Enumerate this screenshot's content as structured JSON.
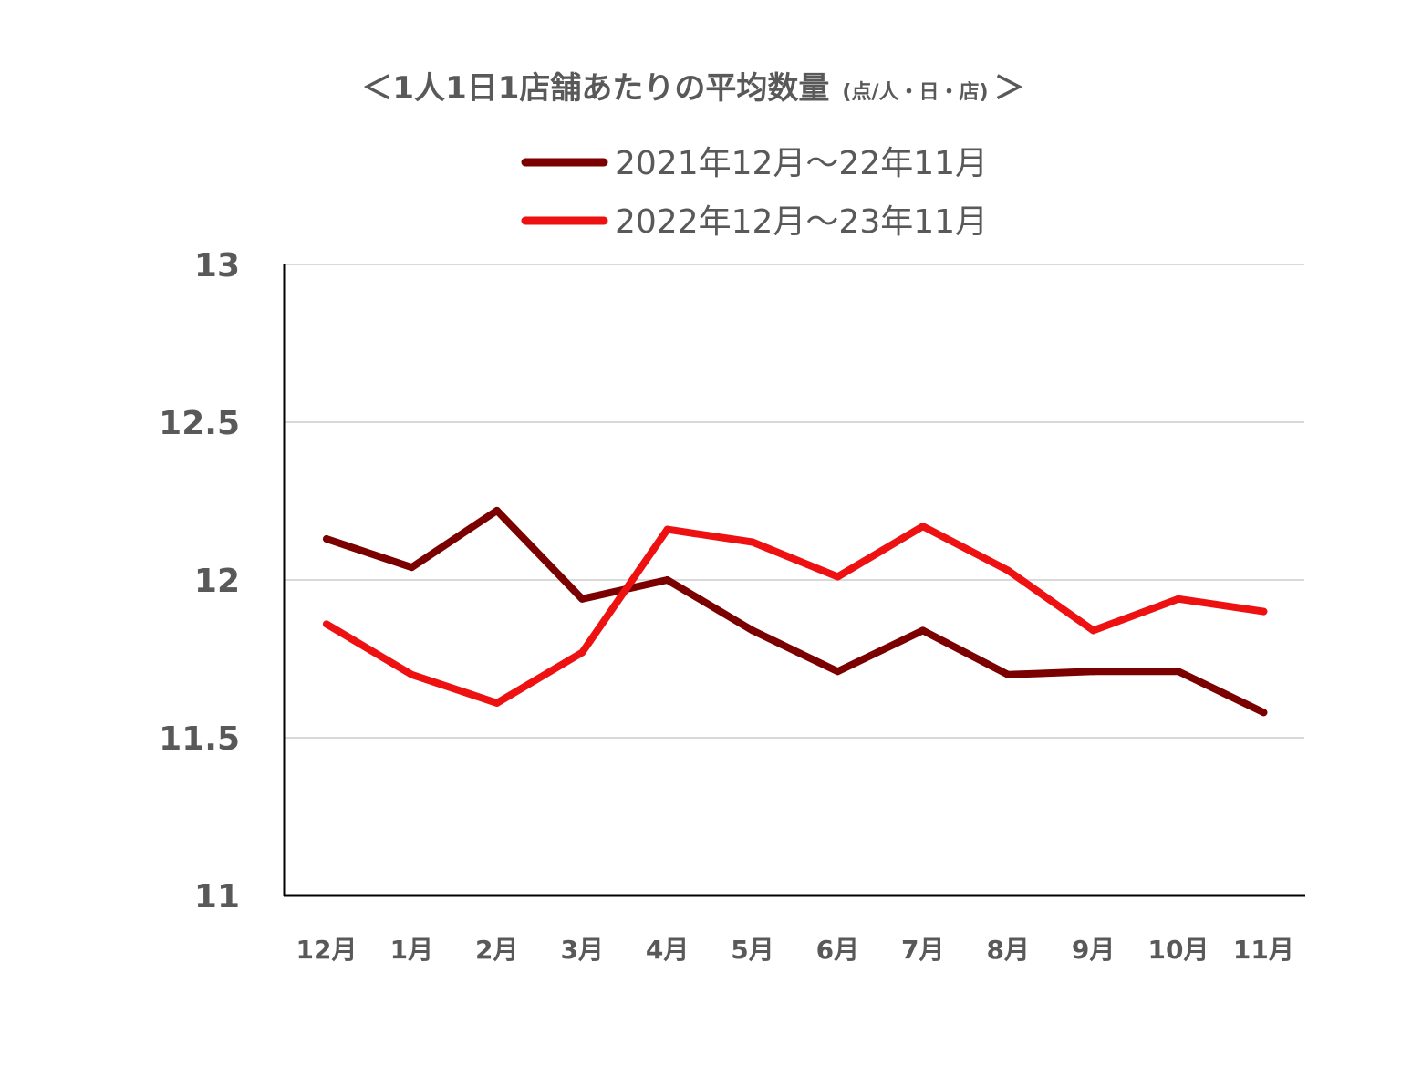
{
  "chart_data": {
    "type": "line",
    "title": "＜1人1日1店舗あたりの平均数量",
    "title_unit": "(点/人・日・店)",
    "title_close": "＞",
    "xlabel": "",
    "ylabel": "",
    "categories": [
      "12月",
      "1月",
      "2月",
      "3月",
      "4月",
      "5月",
      "6月",
      "7月",
      "8月",
      "9月",
      "10月",
      "11月"
    ],
    "ylim": [
      11,
      13
    ],
    "yticks": [
      "11",
      "11.5",
      "12",
      "12.5",
      "13"
    ],
    "ytick_values": [
      11,
      11.5,
      12,
      12.5,
      13
    ],
    "grid": true,
    "legend_position": "top-center",
    "series": [
      {
        "name": "2021年12月～22年11月",
        "color": "#7b0000",
        "values": [
          12.13,
          12.04,
          12.22,
          11.94,
          12.0,
          11.84,
          11.71,
          11.84,
          11.7,
          11.71,
          11.71,
          11.58
        ]
      },
      {
        "name": "2022年12月～23年11月",
        "color": "#ee1111",
        "values": [
          11.86,
          11.7,
          11.61,
          11.77,
          12.16,
          12.12,
          12.01,
          12.17,
          12.03,
          11.84,
          11.94,
          11.9
        ]
      }
    ]
  }
}
